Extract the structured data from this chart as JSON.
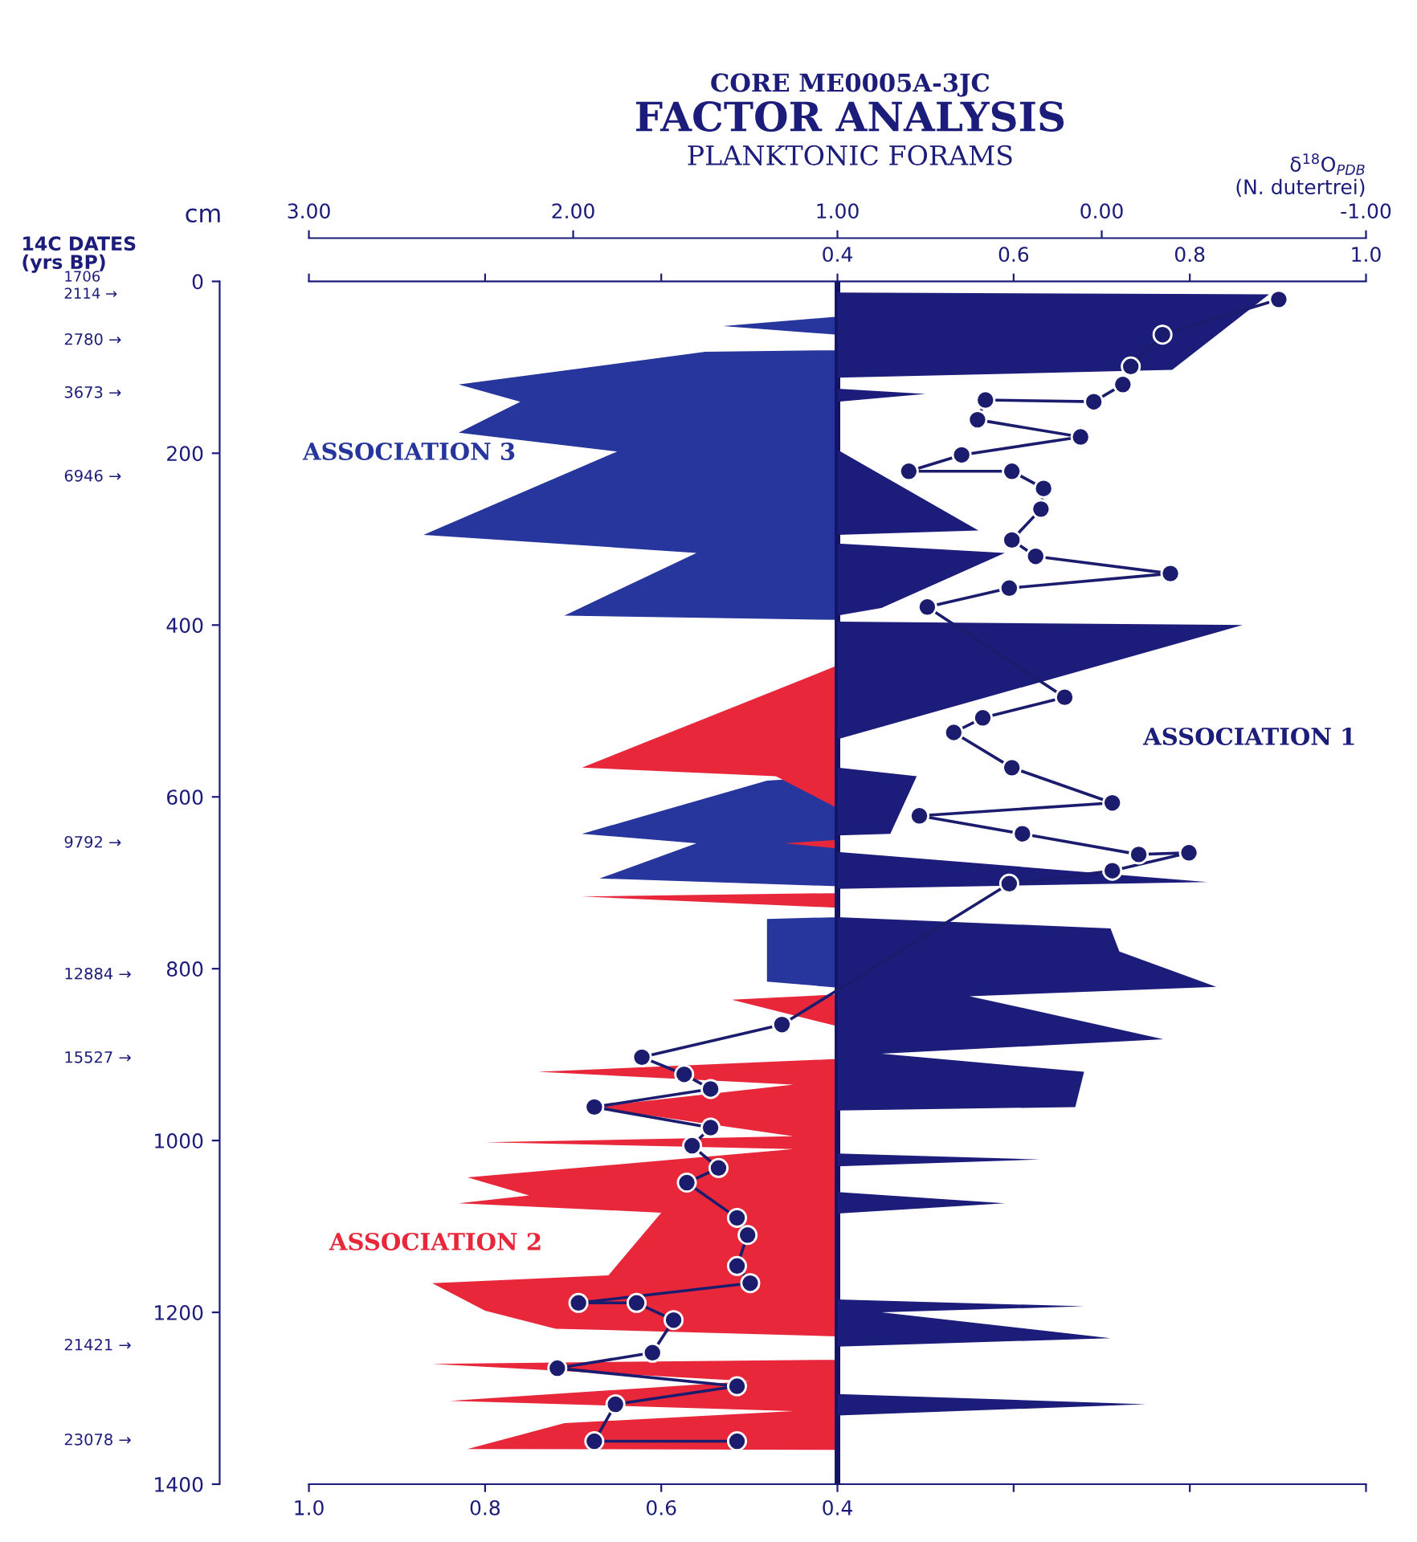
{
  "chart_data": [
    {
      "type": "area",
      "orientation": "horizontal",
      "title": "FACTOR ANALYSIS",
      "subtitle": "PLANKTONIC FORAMS",
      "ylabel": "cm",
      "ylim": [
        1400,
        0
      ],
      "yticks": [
        0,
        200,
        400,
        600,
        800,
        1000,
        1200,
        1400
      ],
      "xlim": [
        1.0,
        -0.2
      ],
      "xticks": [
        {
          "value": 1.0,
          "label": "1.0"
        },
        0.8,
        0.6,
        0.4,
        {
          "value": 0.2,
          "label": null
        },
        {
          "value": 0.0,
          "label": null
        },
        {
          "value": -0.2,
          "label": null
        }
      ],
      "x2lim": [
        -0.2,
        1.0
      ],
      "x2ticks": [
        {
          "value": -0.2,
          "label": null
        },
        {
          "value": 0.0,
          "label": null
        },
        {
          "value": 0.2,
          "label": null
        },
        0.4,
        0.6,
        0.8,
        {
          "value": 1.0,
          "label": "1.0"
        }
      ],
      "ref_lines": [
        {
          "axis": "x",
          "value": 0.4,
          "color": "#141466"
        }
      ],
      "grid": false,
      "series": [
        {
          "name": "ASSOCIATION 1",
          "axis": "x2",
          "color": "#1c1c7a",
          "x": [
            0,
            13,
            15,
            103,
            112,
            125,
            131,
            140,
            196,
            290,
            295,
            305,
            316,
            380,
            389,
            396,
            400,
            533,
            566,
            576,
            643,
            645,
            664,
            699,
            707,
            740,
            753,
            780,
            821,
            832,
            882,
            899,
            920,
            961,
            965,
            1015,
            1022,
            1030,
            1060,
            1073,
            1085,
            1185,
            1193,
            1200,
            1230,
            1240,
            1295,
            1307,
            1320,
            1330
          ],
          "values": [
            0.4,
            0.4,
            0.89,
            0.78,
            0.4,
            0.4,
            0.5,
            0.4,
            0.4,
            0.56,
            0.4,
            0.4,
            0.59,
            0.45,
            0.4,
            0.4,
            0.86,
            0.4,
            0.4,
            0.49,
            0.46,
            0.4,
            0.4,
            0.82,
            0.4,
            0.4,
            0.71,
            0.72,
            0.83,
            0.55,
            0.77,
            0.45,
            0.68,
            0.67,
            0.4,
            0.4,
            0.63,
            0.4,
            0.4,
            0.59,
            0.4,
            0.4,
            0.68,
            0.45,
            0.71,
            0.4,
            0.4,
            0.75,
            0.4,
            0.4
          ]
        },
        {
          "name": "ASSOCIATION 3",
          "color": "#26369c",
          "x": [
            41,
            52,
            62,
            80,
            82,
            120,
            140,
            176,
            198,
            295,
            316,
            389,
            394,
            576,
            581,
            643,
            654,
            695,
            704,
            740,
            742,
            815,
            822
          ],
          "values": [
            0.4,
            0.53,
            0.4,
            0.4,
            0.55,
            0.83,
            0.76,
            0.83,
            0.65,
            0.87,
            0.56,
            0.71,
            0.4,
            0.4,
            0.48,
            0.69,
            0.56,
            0.67,
            0.4,
            0.4,
            0.48,
            0.48,
            0.4
          ]
        },
        {
          "name": "ASSOCIATION 2",
          "color": "#e8283a",
          "x": [
            440,
            447,
            566,
            576,
            613,
            650,
            654,
            660,
            712,
            716,
            729,
            830,
            836,
            867,
            905,
            920,
            935,
            961,
            995,
            1002,
            1010,
            1043,
            1064,
            1073,
            1084,
            1157,
            1166,
            1198,
            1219,
            1228,
            1255,
            1260,
            1280,
            1303,
            1315,
            1329,
            1359,
            1360
          ],
          "values": [
            0.4,
            0.4,
            0.69,
            0.47,
            0.4,
            0.4,
            0.46,
            0.4,
            0.4,
            0.69,
            0.4,
            0.4,
            0.52,
            0.4,
            0.4,
            0.74,
            0.45,
            0.68,
            0.45,
            0.8,
            0.45,
            0.82,
            0.75,
            0.83,
            0.6,
            0.66,
            0.86,
            0.8,
            0.72,
            0.4,
            0.4,
            0.86,
            0.5,
            0.84,
            0.45,
            0.71,
            0.82,
            0.4
          ]
        }
      ],
      "annotations": [
        "CORE ME0005A-3JC",
        "14C DATES\n(yrs BP)",
        "1706",
        "2114 →",
        "2780 →",
        "3673 →",
        "6946 →",
        "9792 →",
        "12884 →",
        "15527 →",
        "21421 →",
        "23078 →"
      ]
    },
    {
      "type": "line",
      "orientation": "horizontal",
      "tick_labels": "x",
      "xlabel": "δ$^{18}$O$_{PDB}$\n(N. dutertrei)",
      "xlim": [
        3.0,
        -1.0
      ],
      "xticks": [
        {
          "value": 3.0,
          "label": "3.00"
        },
        {
          "value": 2.0,
          "label": "2.00"
        },
        {
          "value": 1.0,
          "label": "1.00"
        },
        {
          "value": 0.0,
          "label": "0.00"
        },
        {
          "value": -1.0,
          "label": "-1.00"
        }
      ],
      "ylim": [
        1400,
        0
      ],
      "marker": "circle",
      "line_style": "solid",
      "series": [
        {
          "color": "#1c1c6e",
          "x": [
            21,
            62,
            99,
            120,
            140,
            138,
            161,
            181,
            202,
            221,
            221,
            241,
            265,
            301,
            320,
            340,
            357,
            379,
            484,
            508,
            525,
            566,
            607,
            622,
            643,
            667,
            665,
            686,
            701,
            865,
            903,
            923,
            940,
            961,
            985,
            1006,
            1032,
            1049,
            1090,
            1110,
            1146,
            1166,
            1189,
            1189,
            1209,
            1247,
            1265,
            1286,
            1307,
            1350,
            1350
          ],
          "values": [
            -0.67,
            -0.23,
            -0.11,
            -0.08,
            0.03,
            0.44,
            0.47,
            0.08,
            0.53,
            0.73,
            0.34,
            0.22,
            0.23,
            0.34,
            0.25,
            -0.26,
            0.35,
            0.66,
            0.14,
            0.45,
            0.56,
            0.34,
            -0.04,
            0.69,
            0.3,
            -0.14,
            -0.33,
            -0.04,
            0.35,
            1.21,
            1.74,
            1.58,
            1.48,
            1.92,
            1.48,
            1.55,
            1.45,
            1.57,
            1.38,
            1.34,
            1.38,
            1.33,
            1.98,
            1.76,
            1.62,
            1.7,
            2.06,
            1.38,
            1.84,
            1.92,
            1.38
          ]
        }
      ]
    }
  ]
}
